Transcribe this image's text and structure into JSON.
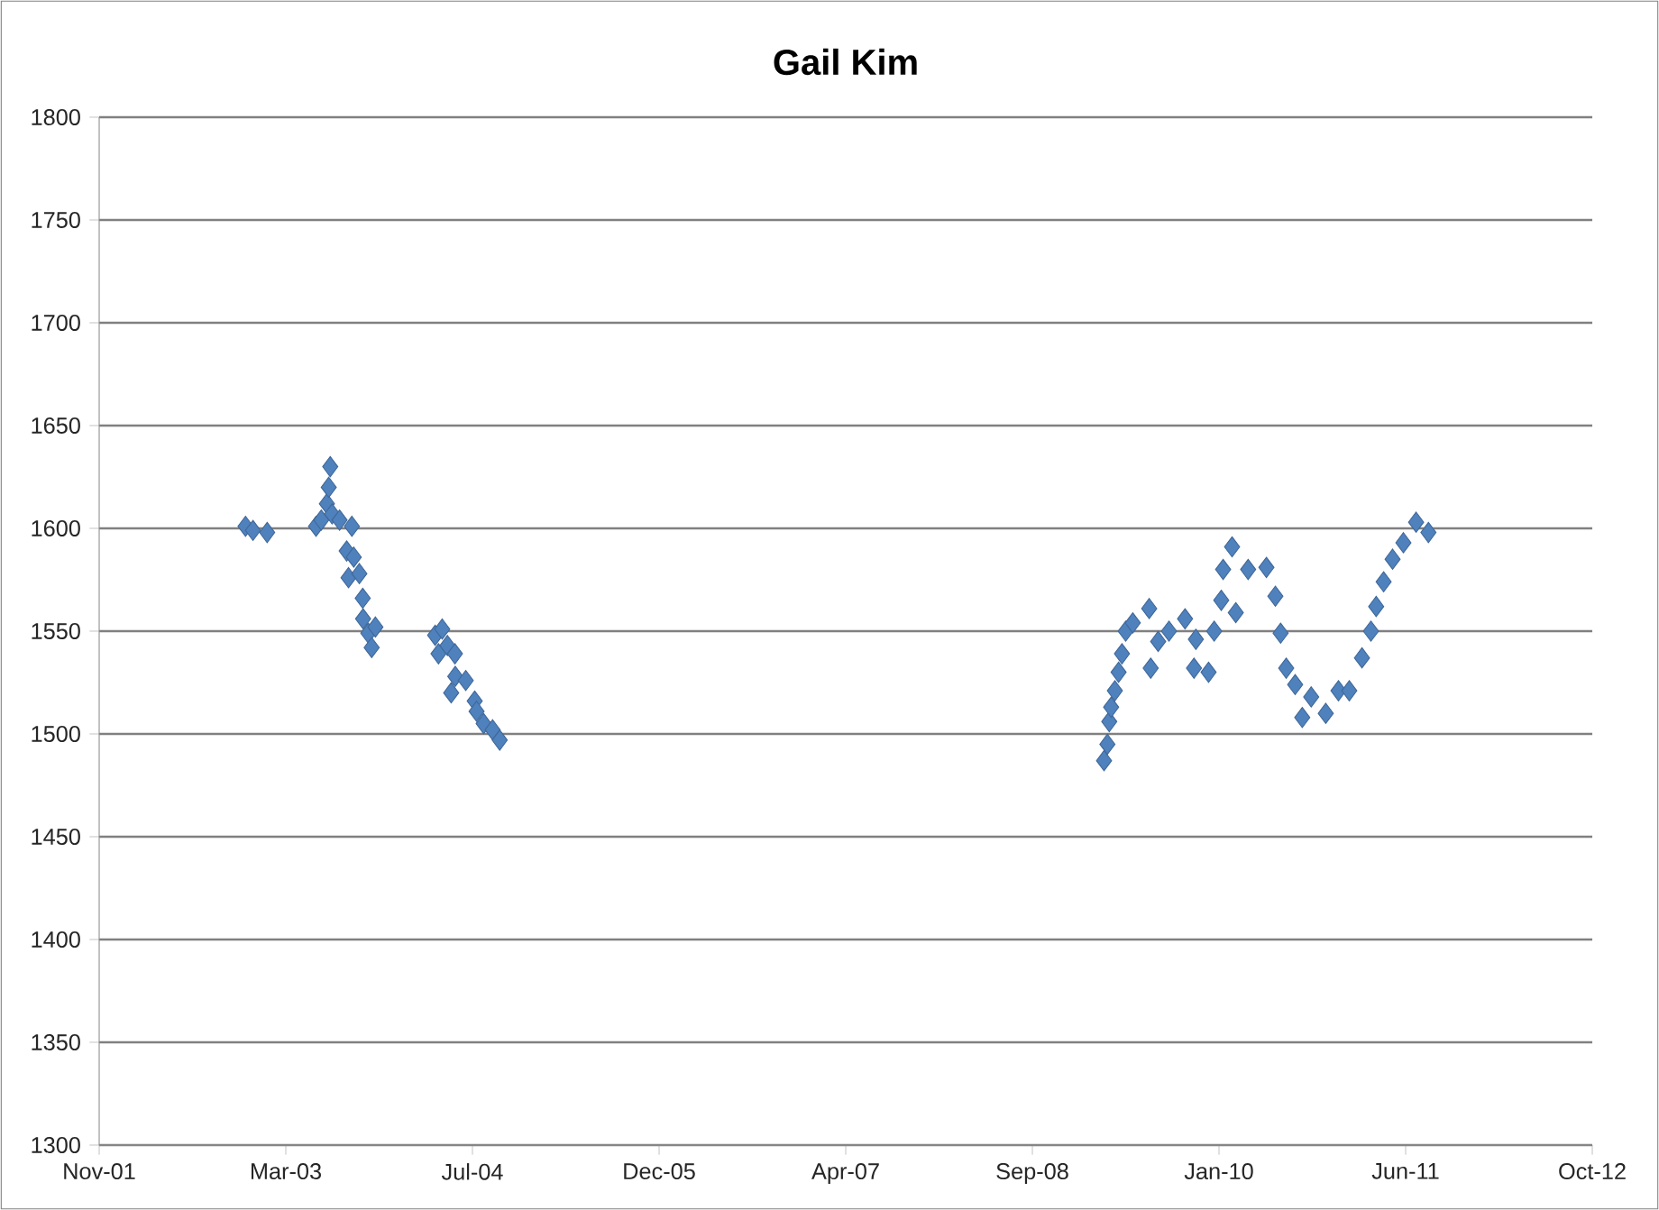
{
  "chart_data": {
    "type": "scatter",
    "title": "Gail Kim",
    "marker": "diamond",
    "grid": "y",
    "xlim": [
      "2001-11-04",
      "2012-10-17"
    ],
    "xticks": [
      {
        "value": "2001-11-04",
        "label": "Nov-01"
      },
      {
        "value": "2003-03-19",
        "label": "Mar-03"
      },
      {
        "value": "2004-07-31",
        "label": "Jul-04"
      },
      {
        "value": "2005-12-13",
        "label": "Dec-05"
      },
      {
        "value": "2007-04-27",
        "label": "Apr-07"
      },
      {
        "value": "2008-09-08",
        "label": "Sep-08"
      },
      {
        "value": "2010-01-21",
        "label": "Jan-10"
      },
      {
        "value": "2011-06-05",
        "label": "Jun-11"
      },
      {
        "value": "2012-10-17",
        "label": "Oct-12"
      }
    ],
    "ylim": [
      1300,
      1800
    ],
    "yticks": [
      1300,
      1350,
      1400,
      1450,
      1500,
      1550,
      1600,
      1650,
      1700,
      1750,
      1800
    ],
    "series": [
      {
        "color": "#4f81bd",
        "x": [
          "2002-12-01",
          "2002-12-21",
          "2003-01-28",
          "2003-06-08",
          "2003-06-22",
          "2003-07-07",
          "2003-07-12",
          "2003-07-16",
          "2003-07-21",
          "2003-08-10",
          "2003-08-29",
          "2003-09-03",
          "2003-09-12",
          "2003-09-17",
          "2003-10-02",
          "2003-10-11",
          "2003-10-12",
          "2003-10-26",
          "2003-11-04",
          "2003-11-14",
          "2004-04-22",
          "2004-05-01",
          "2004-05-11",
          "2004-05-25",
          "2004-06-04",
          "2004-06-14",
          "2004-06-15",
          "2004-07-13",
          "2004-08-06",
          "2004-08-11",
          "2004-08-30",
          "2004-09-23",
          "2004-10-12",
          "2009-03-19",
          "2009-03-28",
          "2009-04-02",
          "2009-04-07",
          "2009-04-17",
          "2009-04-27",
          "2009-05-06",
          "2009-05-16",
          "2009-06-04",
          "2009-07-18",
          "2009-07-22",
          "2009-08-11",
          "2009-09-09",
          "2009-10-22",
          "2009-11-15",
          "2009-11-20",
          "2009-12-24",
          "2010-01-08",
          "2010-01-27",
          "2010-02-01",
          "2010-02-25",
          "2010-03-07",
          "2010-04-09",
          "2010-05-28",
          "2010-06-21",
          "2010-07-05",
          "2010-07-20",
          "2010-08-13",
          "2010-09-01",
          "2010-09-25",
          "2010-11-03",
          "2010-12-07",
          "2011-01-05",
          "2011-02-08",
          "2011-03-04",
          "2011-03-18",
          "2011-04-07",
          "2011-05-01",
          "2011-05-30",
          "2011-07-03",
          "2011-08-05"
        ],
        "values": [
          1601,
          1599,
          1598,
          1601,
          1604,
          1612,
          1620,
          1630,
          1607,
          1604,
          1589,
          1576,
          1601,
          1586,
          1578,
          1566,
          1556,
          1549,
          1542,
          1552,
          1548,
          1539,
          1551,
          1543,
          1520,
          1539,
          1528,
          1526,
          1516,
          1511,
          1505,
          1502,
          1497,
          1487,
          1495,
          1506,
          1513,
          1521,
          1530,
          1539,
          1550,
          1554,
          1561,
          1532,
          1545,
          1550,
          1556,
          1532,
          1546,
          1530,
          1550,
          1565,
          1580,
          1591,
          1559,
          1580,
          1581,
          1567,
          1549,
          1532,
          1524,
          1508,
          1518,
          1510,
          1521,
          1521,
          1537,
          1550,
          1562,
          1574,
          1585,
          1593,
          1603,
          1598
        ]
      }
    ]
  }
}
